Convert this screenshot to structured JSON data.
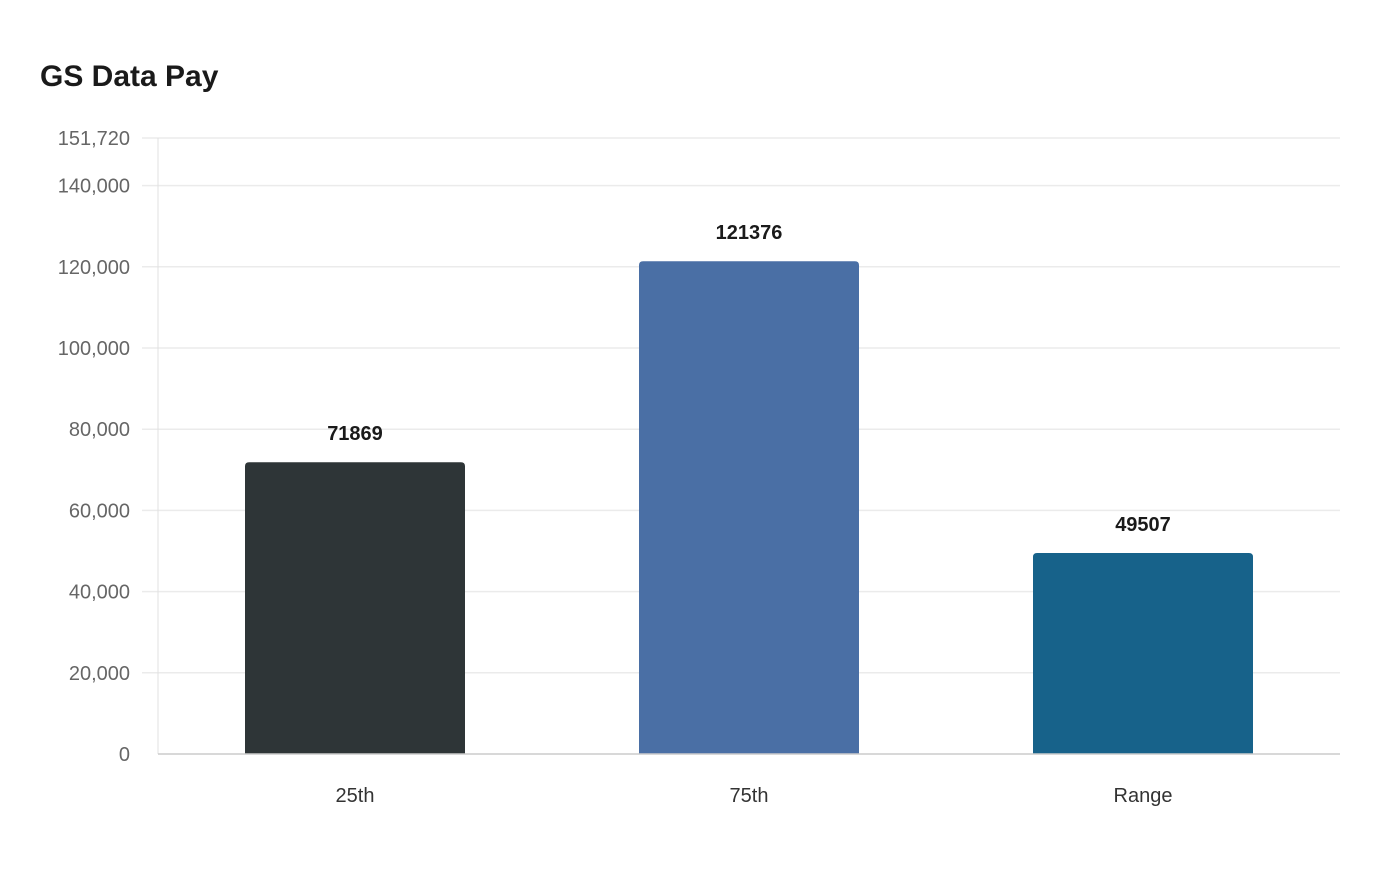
{
  "chart_data": {
    "type": "bar",
    "title": "GS Data Pay",
    "xlabel": "",
    "ylabel": "",
    "categories": [
      "25th",
      "75th",
      "Range"
    ],
    "values": [
      71869,
      121376,
      49507
    ],
    "data_labels": [
      "71869",
      "121376",
      "49507"
    ],
    "colors": [
      "#2e3537",
      "#4a6fa5",
      "#17628a"
    ],
    "ylim": [
      0,
      151720
    ],
    "yticks": [
      0,
      20000,
      40000,
      60000,
      80000,
      100000,
      120000,
      140000,
      151720
    ],
    "ytick_labels": [
      "0",
      "20,000",
      "40,000",
      "60,000",
      "80,000",
      "100,000",
      "120,000",
      "140,000",
      "151,720"
    ],
    "grid": true,
    "legend": "none"
  }
}
